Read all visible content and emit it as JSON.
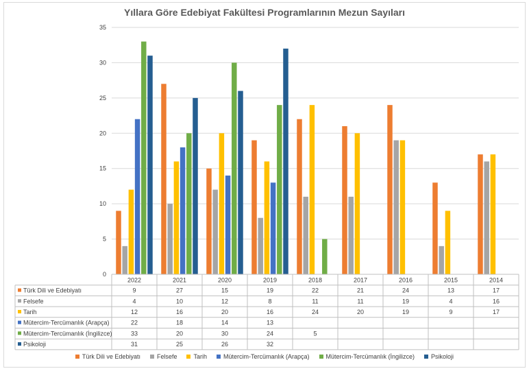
{
  "chart_data": {
    "type": "bar",
    "title": "Yıllara Göre Edebiyat Fakültesi Programlarının Mezun Sayıları",
    "categories": [
      "2022",
      "2021",
      "2020",
      "2019",
      "2018",
      "2017",
      "2016",
      "2015",
      "2014"
    ],
    "ylim": [
      0,
      35
    ],
    "yticks": [
      "0",
      "5",
      "10",
      "15",
      "20",
      "25",
      "30",
      "35"
    ],
    "grid": true,
    "legend_position": "bottom",
    "series": [
      {
        "name": "Türk Dili ve Edebiyatı",
        "color": "#ED7D31",
        "values": [
          9,
          27,
          15,
          19,
          22,
          21,
          24,
          13,
          17
        ]
      },
      {
        "name": "Felsefe",
        "color": "#A5A5A5",
        "values": [
          4,
          10,
          12,
          8,
          11,
          11,
          19,
          4,
          16
        ]
      },
      {
        "name": "Tarih",
        "color": "#FFC000",
        "values": [
          12,
          16,
          20,
          16,
          24,
          20,
          19,
          9,
          17
        ]
      },
      {
        "name": "Mütercim-Tercümanlık (Arapça)",
        "color": "#4472C4",
        "values": [
          22,
          18,
          14,
          13,
          null,
          null,
          null,
          null,
          null
        ]
      },
      {
        "name": "Mütercim-Tercümanlık (İngilizce)",
        "color": "#70AD47",
        "values": [
          33,
          20,
          30,
          24,
          5,
          null,
          null,
          null,
          null
        ]
      },
      {
        "name": "Psikoloji",
        "color": "#255E91",
        "values": [
          31,
          25,
          26,
          32,
          null,
          null,
          null,
          null,
          null
        ]
      }
    ]
  }
}
